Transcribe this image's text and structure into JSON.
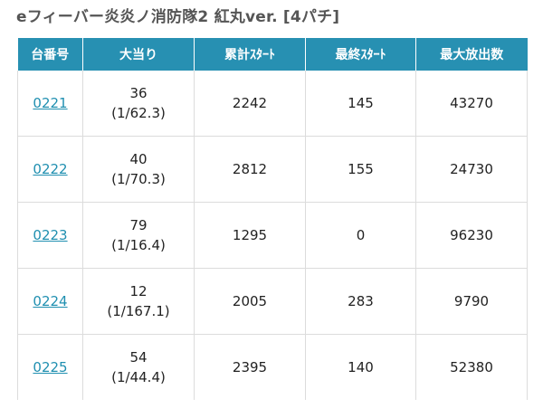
{
  "page": {
    "title": "eフィーバー炎炎ノ消防隊2 紅丸ver. [4パチ]"
  },
  "table": {
    "headers": {
      "machine": "台番号",
      "big_hits": "大当り",
      "total_start": "累計ｽﾀｰﾄ",
      "last_start": "最終ｽﾀｰﾄ",
      "max_payout": "最大放出数"
    },
    "rows": [
      {
        "machine": "0221",
        "big_count": "36",
        "big_rate": "(1/62.3)",
        "total_start": "2242",
        "last_start": "145",
        "max_payout": "43270"
      },
      {
        "machine": "0222",
        "big_count": "40",
        "big_rate": "(1/70.3)",
        "total_start": "2812",
        "last_start": "155",
        "max_payout": "24730"
      },
      {
        "machine": "0223",
        "big_count": "79",
        "big_rate": "(1/16.4)",
        "total_start": "1295",
        "last_start": "0",
        "max_payout": "96230"
      },
      {
        "machine": "0224",
        "big_count": "12",
        "big_rate": "(1/167.1)",
        "total_start": "2005",
        "last_start": "283",
        "max_payout": "9790"
      },
      {
        "machine": "0225",
        "big_count": "54",
        "big_rate": "(1/44.4)",
        "total_start": "2395",
        "last_start": "140",
        "max_payout": "52380"
      }
    ]
  },
  "colors": {
    "header_bg": "#2790b2",
    "link": "#1f8fb0",
    "title": "#555555"
  }
}
